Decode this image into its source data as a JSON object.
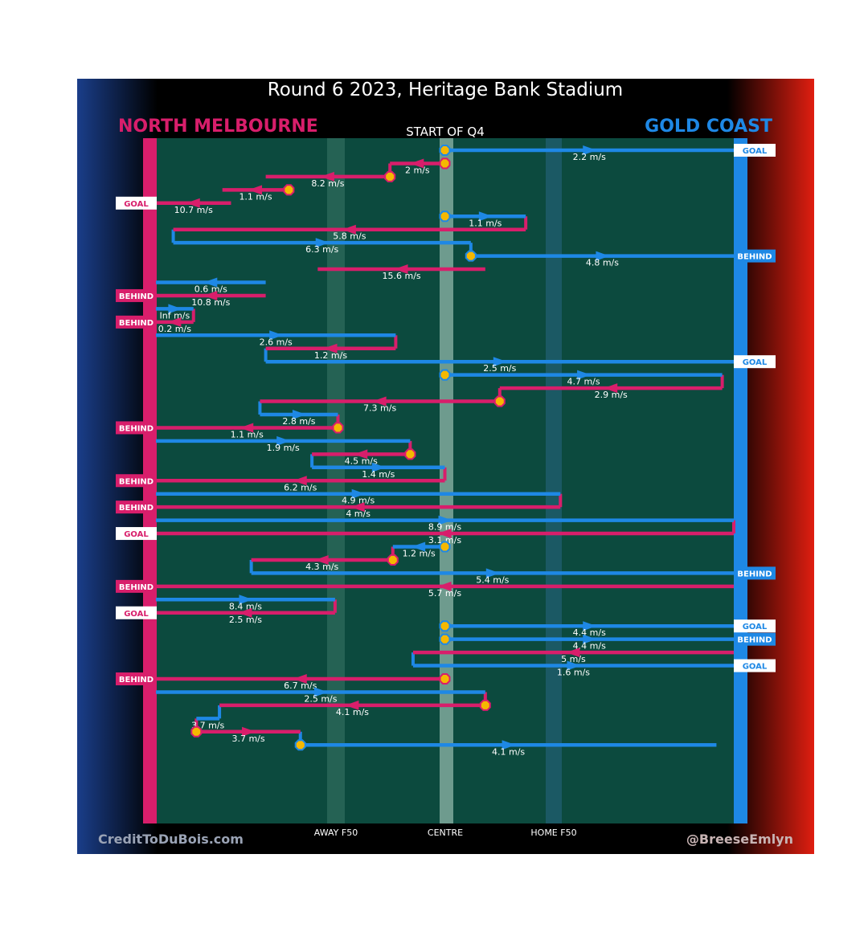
{
  "colors": {
    "north": "#d81e6b",
    "gold": "#1e88e5",
    "field": "#0c4a3e",
    "ball_fill": "#f5b800",
    "goal_bg": "#ffffff",
    "behind_north_bg": "#d81e6b",
    "behind_gold_bg": "#1e88e5"
  },
  "chart_data": {
    "type": "line",
    "title": "Round 6 2023, Heritage Bank Stadium",
    "subtitle": "START OF Q4",
    "left_team": "NORTH MELBOURNE",
    "right_team": "GOLD COAST",
    "x_axis": {
      "range": [
        0,
        100
      ],
      "ticks": [
        {
          "x": 27.5,
          "label": "AWAY F50"
        },
        {
          "x": 50,
          "label": "CENTRE"
        },
        {
          "x": 72.5,
          "label": "HOME F50"
        }
      ]
    },
    "footer_left": "CreditToDuBois.com",
    "footer_right": "@BreeseEmlyn",
    "chains": [
      {
        "team": "gold",
        "start": 50,
        "end": 100,
        "speed": "2.2 m/s",
        "result": "GOAL",
        "bounce": true
      },
      {
        "team": "north",
        "start": 50,
        "end": 40.5,
        "speed": "2 m/s",
        "bounce": true
      },
      {
        "team": "north",
        "start": 40.5,
        "end": 19,
        "speed": "8.2 m/s",
        "bounce": true
      },
      {
        "team": "north",
        "start": 23,
        "end": 11.5,
        "speed": "1.1 m/s",
        "bounce": true
      },
      {
        "team": "north",
        "start": 13,
        "end": 0,
        "speed": "10.7 m/s",
        "result": "GOAL"
      },
      {
        "team": "gold",
        "start": 50,
        "end": 64,
        "speed": "1.1 m/s",
        "bounce": true
      },
      {
        "team": "north",
        "start": 64,
        "end": 3,
        "speed": "5.8 m/s"
      },
      {
        "team": "gold",
        "start": 3,
        "end": 54.5,
        "speed": "6.3 m/s"
      },
      {
        "team": "gold",
        "start": 54.5,
        "end": 100,
        "speed": "4.8 m/s",
        "result": "BEHIND",
        "bounce": true
      },
      {
        "team": "north",
        "start": 57,
        "end": 28,
        "speed": "15.6 m/s"
      },
      {
        "team": "gold",
        "start": 19,
        "end": 0,
        "speed": "0.6 m/s"
      },
      {
        "team": "north",
        "start": 19,
        "end": 0,
        "speed": "10.8 m/s",
        "result": "BEHIND"
      },
      {
        "team": "gold",
        "start": 0,
        "end": 6.5,
        "speed": "Inf m/s"
      },
      {
        "team": "north",
        "start": 6.5,
        "end": 0,
        "speed": "0.2 m/s",
        "result": "BEHIND"
      },
      {
        "team": "gold",
        "start": 0,
        "end": 41.5,
        "speed": "2.6 m/s"
      },
      {
        "team": "north",
        "start": 41.5,
        "end": 19,
        "speed": "1.2 m/s"
      },
      {
        "team": "gold",
        "start": 19,
        "end": 100,
        "speed": "2.5 m/s",
        "result": "GOAL"
      },
      {
        "team": "gold",
        "start": 50,
        "end": 98,
        "speed": "4.7 m/s",
        "bounce": true
      },
      {
        "team": "north",
        "start": 98,
        "end": 59.5,
        "speed": "2.9 m/s"
      },
      {
        "team": "north",
        "start": 59.5,
        "end": 18,
        "speed": "7.3 m/s",
        "bounce": true
      },
      {
        "team": "gold",
        "start": 18,
        "end": 31.5,
        "speed": "2.8 m/s"
      },
      {
        "team": "north",
        "start": 31.5,
        "end": 0,
        "speed": "1.1 m/s",
        "result": "BEHIND",
        "bounce": true
      },
      {
        "team": "gold",
        "start": 0,
        "end": 44,
        "speed": "1.9 m/s"
      },
      {
        "team": "north",
        "start": 44,
        "end": 27,
        "speed": "4.5 m/s",
        "bounce": true
      },
      {
        "team": "gold",
        "start": 27,
        "end": 50,
        "speed": "1.4 m/s"
      },
      {
        "team": "north",
        "start": 50,
        "end": 0,
        "speed": "6.2 m/s",
        "result": "BEHIND"
      },
      {
        "team": "gold",
        "start": 0,
        "end": 70,
        "speed": "4.9 m/s"
      },
      {
        "team": "north",
        "start": 70,
        "end": 0,
        "speed": "4 m/s",
        "result": "BEHIND"
      },
      {
        "team": "gold",
        "start": 0,
        "end": 100,
        "speed": "8.9 m/s"
      },
      {
        "team": "north",
        "start": 100,
        "end": 0,
        "speed": "3.1 m/s",
        "result": "GOAL"
      },
      {
        "team": "gold",
        "start": 50,
        "end": 41,
        "speed": "1.2 m/s",
        "bounce": true
      },
      {
        "team": "north",
        "start": 41,
        "end": 16.5,
        "speed": "4.3 m/s",
        "bounce": true
      },
      {
        "team": "gold",
        "start": 16.5,
        "end": 100,
        "speed": "5.4 m/s",
        "result": "BEHIND"
      },
      {
        "team": "north",
        "start": 100,
        "end": 0,
        "speed": "5.7 m/s",
        "result": "BEHIND"
      },
      {
        "team": "gold",
        "start": 0,
        "end": 31,
        "speed": "8.4 m/s"
      },
      {
        "team": "north",
        "start": 31,
        "end": 0,
        "speed": "2.5 m/s",
        "result": "GOAL"
      },
      {
        "team": "gold",
        "start": 50,
        "end": 100,
        "speed": "4.4 m/s",
        "result": "GOAL",
        "bounce": true
      },
      {
        "team": "gold",
        "start": 50,
        "end": 100,
        "speed": "4.4 m/s",
        "result": "BEHIND",
        "bounce": true
      },
      {
        "team": "north",
        "start": 100,
        "end": 44.5,
        "speed": "5 m/s"
      },
      {
        "team": "gold",
        "start": 44.5,
        "end": 100,
        "speed": "1.6 m/s",
        "result": "GOAL"
      },
      {
        "team": "north",
        "start": 50,
        "end": 0,
        "speed": "6.7 m/s",
        "result": "BEHIND",
        "bounce": true
      },
      {
        "team": "gold",
        "start": 0,
        "end": 57,
        "speed": "2.5 m/s"
      },
      {
        "team": "north",
        "start": 57,
        "end": 11,
        "speed": "4.1 m/s",
        "bounce": true
      },
      {
        "team": "gold",
        "start": 11,
        "end": 7,
        "speed": "3.7 m/s"
      },
      {
        "team": "north",
        "start": 7,
        "end": 25,
        "speed": "3.7 m/s",
        "bounce": true
      },
      {
        "team": "gold",
        "start": 25,
        "end": 97,
        "speed": "4.1 m/s",
        "bounce": true
      }
    ]
  }
}
